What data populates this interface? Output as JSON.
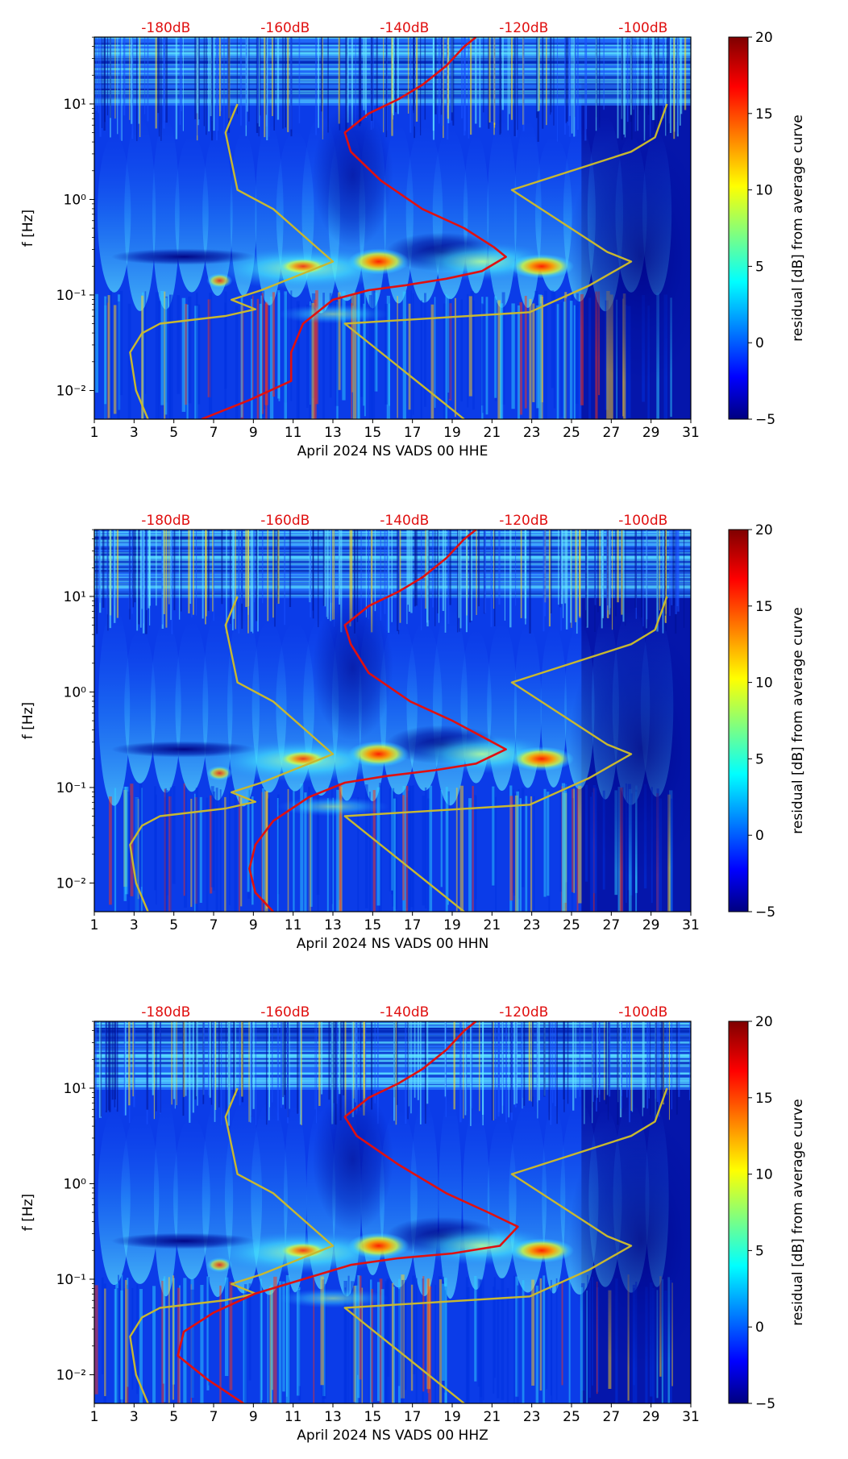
{
  "chart_data": [
    {
      "type": "heatmap",
      "xlabel": "April 2024 NS VADS 00 HHE",
      "ylabel": "f [Hz]",
      "x_ticks": [
        "1",
        "3",
        "5",
        "7",
        "9",
        "11",
        "13",
        "15",
        "17",
        "19",
        "21",
        "23",
        "25",
        "27",
        "29",
        "31"
      ],
      "y_ticks": [
        "10⁻²",
        "10⁻¹",
        "10⁰",
        "10¹"
      ],
      "top_axis_labels": [
        "-180dB",
        "-160dB",
        "-140dB",
        "-120dB",
        "-100dB"
      ],
      "colorbar": {
        "label": "residual [dB] from average curve",
        "ticks": [
          "20",
          "15",
          "10",
          "5",
          "0",
          "−5"
        ],
        "range": [
          -5,
          20
        ]
      },
      "xlim": [
        1,
        31
      ],
      "ylim_log10": [
        -2.3,
        1.7
      ],
      "red_curve_x": [
        -174,
        -166,
        -159,
        -159,
        -157,
        -152,
        -146,
        -140,
        -133,
        -127,
        -123,
        -125,
        -130,
        -137,
        -144,
        -149,
        -150,
        -146,
        -141,
        -137,
        -133,
        -130,
        -128
      ],
      "red_curve_log10f": [
        -2.3,
        -2.1,
        -1.9,
        -1.6,
        -1.3,
        -1.05,
        -0.95,
        -0.9,
        -0.83,
        -0.75,
        -0.6,
        -0.5,
        -0.3,
        -0.1,
        0.2,
        0.5,
        0.7,
        0.9,
        1.05,
        1.2,
        1.4,
        1.6,
        1.7
      ],
      "nlnm_x": [
        -183,
        -185,
        -186,
        -184,
        -181,
        -170,
        -165,
        -169,
        -164,
        -152,
        -162,
        -168,
        -170,
        -168
      ],
      "nlnm_log10f": [
        -2.3,
        -2.0,
        -1.6,
        -1.4,
        -1.3,
        -1.22,
        -1.15,
        -1.05,
        -0.95,
        -0.65,
        -0.1,
        0.1,
        0.7,
        1.0
      ],
      "nhnm_x": [
        -130,
        -150,
        -119,
        -109,
        -102,
        -106,
        -122,
        -102,
        -98,
        -96
      ],
      "nhnm_log10f": [
        -2.3,
        -1.3,
        -1.18,
        -0.9,
        -0.65,
        -0.55,
        0.1,
        0.5,
        0.65,
        1.0
      ]
    },
    {
      "type": "heatmap",
      "xlabel": "April 2024 NS VADS 00 HHN",
      "ylabel": "f [Hz]",
      "x_ticks": [
        "1",
        "3",
        "5",
        "7",
        "9",
        "11",
        "13",
        "15",
        "17",
        "19",
        "21",
        "23",
        "25",
        "27",
        "29",
        "31"
      ],
      "y_ticks": [
        "10⁻²",
        "10⁻¹",
        "10⁰",
        "10¹"
      ],
      "top_axis_labels": [
        "-180dB",
        "-160dB",
        "-140dB",
        "-120dB",
        "-100dB"
      ],
      "colorbar": {
        "label": "residual [dB] from average curve",
        "ticks": [
          "20",
          "15",
          "10",
          "5",
          "0",
          "−5"
        ],
        "range": [
          -5,
          20
        ]
      },
      "xlim": [
        1,
        31
      ],
      "ylim_log10": [
        -2.3,
        1.7
      ],
      "red_curve_x": [
        -162,
        -165,
        -166,
        -165,
        -162,
        -156,
        -150,
        -143,
        -135,
        -128,
        -123,
        -126,
        -132,
        -139,
        -146,
        -149,
        -150,
        -146,
        -141,
        -137,
        -133,
        -130,
        -128
      ],
      "red_curve_log10f": [
        -2.3,
        -2.1,
        -1.85,
        -1.6,
        -1.35,
        -1.1,
        -0.95,
        -0.88,
        -0.82,
        -0.75,
        -0.6,
        -0.5,
        -0.3,
        -0.1,
        0.2,
        0.5,
        0.7,
        0.9,
        1.05,
        1.2,
        1.4,
        1.6,
        1.7
      ],
      "nlnm_x": [
        -183,
        -185,
        -186,
        -184,
        -181,
        -170,
        -165,
        -169,
        -164,
        -152,
        -162,
        -168,
        -170,
        -168
      ],
      "nlnm_log10f": [
        -2.3,
        -2.0,
        -1.6,
        -1.4,
        -1.3,
        -1.22,
        -1.15,
        -1.05,
        -0.95,
        -0.65,
        -0.1,
        0.1,
        0.7,
        1.0
      ],
      "nhnm_x": [
        -130,
        -150,
        -119,
        -109,
        -102,
        -106,
        -122,
        -102,
        -98,
        -96
      ],
      "nhnm_log10f": [
        -2.3,
        -1.3,
        -1.18,
        -0.9,
        -0.65,
        -0.55,
        0.1,
        0.5,
        0.65,
        1.0
      ]
    },
    {
      "type": "heatmap",
      "xlabel": "April 2024 NS VADS 00 HHZ",
      "ylabel": "f [Hz]",
      "x_ticks": [
        "1",
        "3",
        "5",
        "7",
        "9",
        "11",
        "13",
        "15",
        "17",
        "19",
        "21",
        "23",
        "25",
        "27",
        "29",
        "31"
      ],
      "y_ticks": [
        "10⁻²",
        "10⁻¹",
        "10⁰",
        "10¹"
      ],
      "top_axis_labels": [
        "-180dB",
        "-160dB",
        "-140dB",
        "-120dB",
        "-100dB"
      ],
      "colorbar": {
        "label": "residual [dB] from average curve",
        "ticks": [
          "20",
          "15",
          "10",
          "5",
          "0",
          "−5"
        ],
        "range": [
          -5,
          20
        ]
      },
      "xlim": [
        1,
        31
      ],
      "ylim_log10": [
        -2.3,
        1.7
      ],
      "red_curve_x": [
        -167,
        -173,
        -178,
        -177,
        -172,
        -165,
        -157,
        -149,
        -141,
        -132,
        -124,
        -121,
        -126,
        -133,
        -141,
        -148,
        -150,
        -146,
        -141,
        -137,
        -133,
        -130,
        -128
      ],
      "red_curve_log10f": [
        -2.3,
        -2.05,
        -1.8,
        -1.55,
        -1.35,
        -1.15,
        -1.0,
        -0.85,
        -0.78,
        -0.73,
        -0.65,
        -0.45,
        -0.3,
        -0.1,
        0.2,
        0.5,
        0.7,
        0.9,
        1.05,
        1.2,
        1.4,
        1.6,
        1.7
      ],
      "nlnm_x": [
        -183,
        -185,
        -186,
        -184,
        -181,
        -170,
        -165,
        -169,
        -164,
        -152,
        -162,
        -168,
        -170,
        -168
      ],
      "nlnm_log10f": [
        -2.3,
        -2.0,
        -1.6,
        -1.4,
        -1.3,
        -1.22,
        -1.15,
        -1.05,
        -0.95,
        -0.65,
        -0.1,
        0.1,
        0.7,
        1.0
      ],
      "nhnm_x": [
        -130,
        -150,
        -119,
        -109,
        -102,
        -106,
        -122,
        -102,
        -98,
        -96
      ],
      "nhnm_log10f": [
        -2.3,
        -1.3,
        -1.18,
        -0.9,
        -0.65,
        -0.55,
        0.1,
        0.5,
        0.65,
        1.0
      ]
    }
  ]
}
